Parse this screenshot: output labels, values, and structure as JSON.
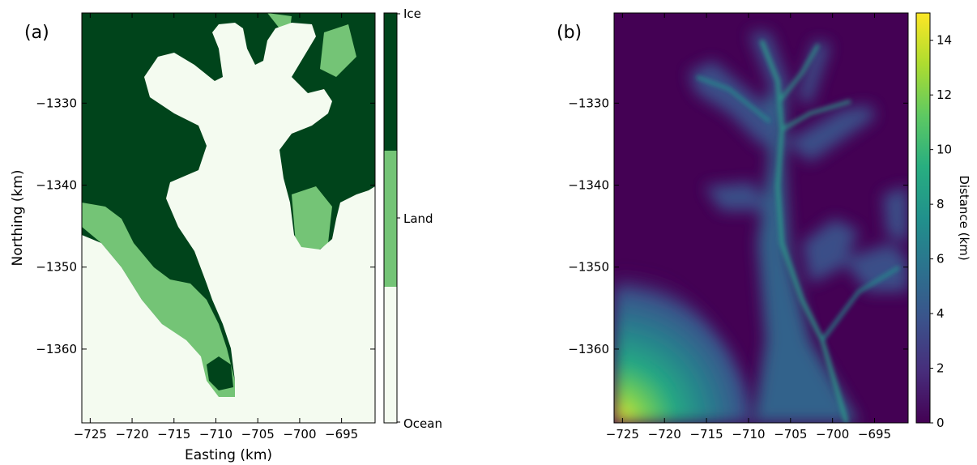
{
  "chart_data": [
    {
      "panel": "(a)",
      "type": "heatmap",
      "title": "",
      "xlabel": "Easting (km)",
      "ylabel": "Northing (km)",
      "xlim": [
        -726,
        -691
      ],
      "ylim": [
        -1369,
        -1319
      ],
      "xticks": [
        -725,
        -720,
        -715,
        -710,
        -705,
        -700,
        -695
      ],
      "yticks": [
        -1330,
        -1340,
        -1350,
        -1360
      ],
      "xtick_labels": [
        "−725",
        "−720",
        "−715",
        "−710",
        "−705",
        "−700",
        "−695"
      ],
      "ytick_labels": [
        "−1330",
        "−1340",
        "−1350",
        "−1360"
      ],
      "colorbar": {
        "type": "categorical",
        "categories": [
          "Ocean",
          "Land",
          "Ice"
        ],
        "colors": [
          "#f4fbf0",
          "#74c476",
          "#00441b"
        ]
      }
    },
    {
      "panel": "(b)",
      "type": "heatmap",
      "title": "",
      "xlabel": "",
      "ylabel": "",
      "xlim": [
        -726,
        -691
      ],
      "ylim": [
        -1369,
        -1319
      ],
      "xticks": [
        -725,
        -720,
        -715,
        -710,
        -705,
        -700,
        -695
      ],
      "yticks": [
        -1330,
        -1340,
        -1350,
        -1360
      ],
      "xtick_labels": [
        "−725",
        "−720",
        "−715",
        "−710",
        "−705",
        "−700",
        "−695"
      ],
      "ytick_labels": [
        "−1330",
        "−1340",
        "−1350",
        "−1360"
      ],
      "colorbar": {
        "label": "Distance (km)",
        "range": [
          0,
          15
        ],
        "ticks": [
          0,
          2,
          4,
          6,
          8,
          10,
          12,
          14
        ],
        "colormap": "viridis"
      }
    }
  ]
}
